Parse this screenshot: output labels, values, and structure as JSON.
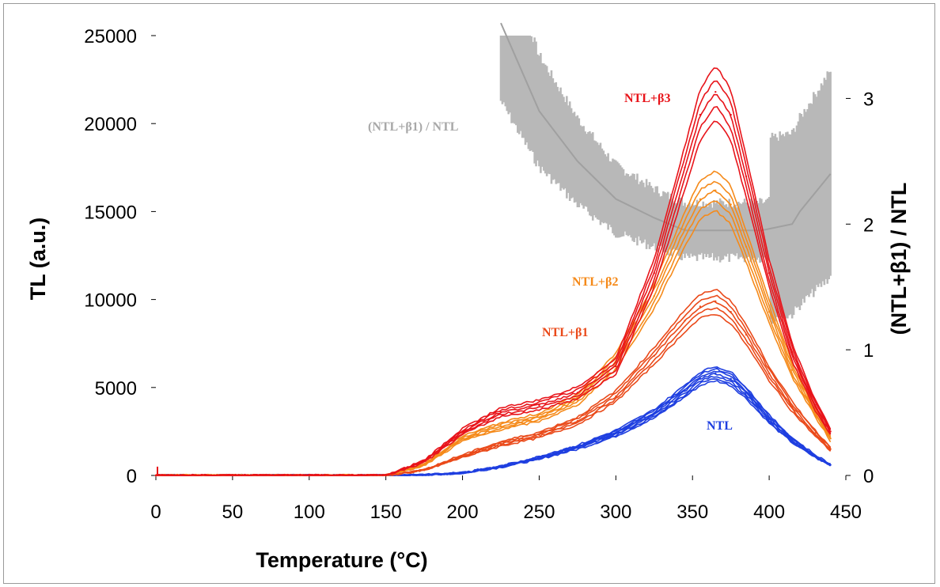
{
  "chart_data": {
    "type": "line",
    "title": "",
    "xlabel": "Temperature (°C)",
    "ylabel": "TL (a.u.)",
    "y2label": "(NTL+β1) / NTL",
    "xlim": [
      0,
      450
    ],
    "ylim": [
      0,
      25000
    ],
    "y2lim": [
      0,
      3.5
    ],
    "x_ticks": [
      "0",
      "50",
      "100",
      "150",
      "200",
      "250",
      "300",
      "350",
      "400",
      "450"
    ],
    "y_ticks": [
      "0",
      "5000",
      "10000",
      "15000",
      "20000",
      "25000"
    ],
    "y2_ticks": [
      "0",
      "1",
      "2",
      "3"
    ],
    "grid": false,
    "x": [
      0,
      100,
      150,
      175,
      200,
      225,
      250,
      275,
      300,
      325,
      345,
      355,
      365,
      375,
      385,
      400,
      415,
      430,
      440
    ],
    "series": [
      {
        "name": "NTL",
        "axis": "left",
        "color": "#1f3fe0",
        "values": [
          0,
          0,
          0,
          30,
          150,
          500,
          1000,
          1600,
          2400,
          3500,
          4800,
          5500,
          5800,
          5500,
          4700,
          3200,
          2000,
          1100,
          600
        ]
      },
      {
        "name": "NTL+β1",
        "axis": "left",
        "color": "#ea4a1a",
        "values": [
          0,
          0,
          0,
          300,
          1100,
          1800,
          2300,
          3100,
          4500,
          6800,
          8800,
          9600,
          9900,
          9300,
          8000,
          5800,
          3900,
          2400,
          1500
        ]
      },
      {
        "name": "NTL+β2",
        "axis": "left",
        "color": "#f58a1a",
        "values": [
          0,
          0,
          0,
          600,
          2100,
          2800,
          3300,
          4300,
          6500,
          10200,
          14000,
          15700,
          16200,
          15400,
          13000,
          9300,
          6000,
          3600,
          2100
        ]
      },
      {
        "name": "NTL+β3",
        "axis": "left",
        "color": "#e8141a",
        "values": [
          0,
          0,
          0,
          800,
          2500,
          3600,
          4000,
          4700,
          6200,
          11500,
          17500,
          20500,
          21800,
          20500,
          17000,
          11500,
          7000,
          4000,
          2500
        ]
      },
      {
        "name": "(NTL+β1) / NTL",
        "axis": "right",
        "color": "#b8b8b8",
        "x": [
          225,
          250,
          275,
          300,
          325,
          345,
          370,
          395,
          415,
          420,
          430,
          440
        ],
        "values": [
          3.6,
          2.9,
          2.5,
          2.2,
          2.05,
          1.95,
          1.95,
          1.95,
          2.0,
          2.1,
          2.25,
          2.4
        ]
      }
    ],
    "annotations": [
      "(NTL+β1) / NTL",
      "NTL+β3",
      "NTL+β2",
      "NTL+β1",
      "NTL"
    ]
  }
}
